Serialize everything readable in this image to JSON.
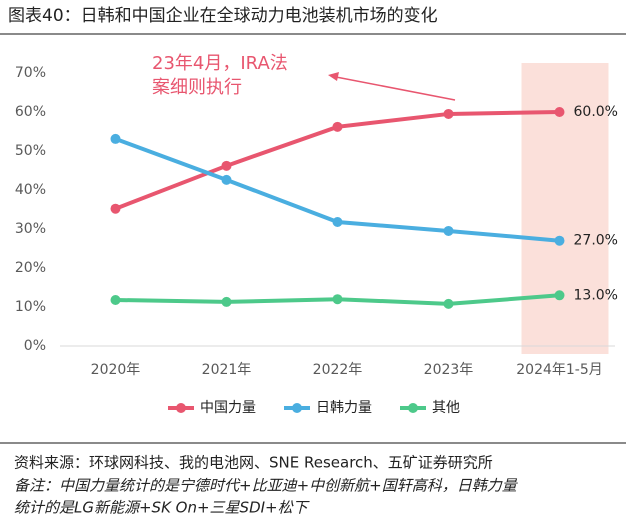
{
  "chart_data": {
    "type": "line",
    "title": "图表40：日韩和中国企业在全球动力电池装机市场的变化",
    "categories": [
      "2020年",
      "2021年",
      "2022年",
      "2023年",
      "2024年1-5月"
    ],
    "series": [
      {
        "name": "中国力量",
        "color": "#e8566f",
        "values": [
          35.2,
          46.2,
          56.2,
          59.5,
          60.0
        ],
        "value_labels": [
          null,
          null,
          null,
          null,
          "60.0%"
        ]
      },
      {
        "name": "日韩力量",
        "color": "#4aaee0",
        "values": [
          53.1,
          42.6,
          31.8,
          29.5,
          27.0
        ],
        "value_labels": [
          null,
          null,
          null,
          null,
          "27.0%"
        ]
      },
      {
        "name": "其他",
        "color": "#4dc98a",
        "values": [
          11.8,
          11.3,
          12.0,
          10.8,
          13.0
        ],
        "value_labels": [
          null,
          null,
          null,
          null,
          "13.0%"
        ]
      }
    ],
    "ylim": [
      0,
      70
    ],
    "yticks": [
      {
        "value": 0,
        "label": "0%"
      },
      {
        "value": 10,
        "label": "10%"
      },
      {
        "value": 20,
        "label": "20%"
      },
      {
        "value": 30,
        "label": "30%"
      },
      {
        "value": 40,
        "label": "40%"
      },
      {
        "value": 50,
        "label": "50%"
      },
      {
        "value": 60,
        "label": "60%"
      },
      {
        "value": 70,
        "label": "70%"
      }
    ],
    "grid": false,
    "highlight_color": "#fbe0da",
    "annotation": [
      "23年4月，IRA法",
      "案细则执行"
    ],
    "source": "资料来源：环球网科技、我的电池网、SNE Research、五矿证券研究所",
    "note": [
      "备注：中国力量统计的是宁德时代+比亚迪+中创新航+国轩高科，日韩力量",
      "统计的是LG新能源+SK  On+三星SDI+松下"
    ]
  }
}
